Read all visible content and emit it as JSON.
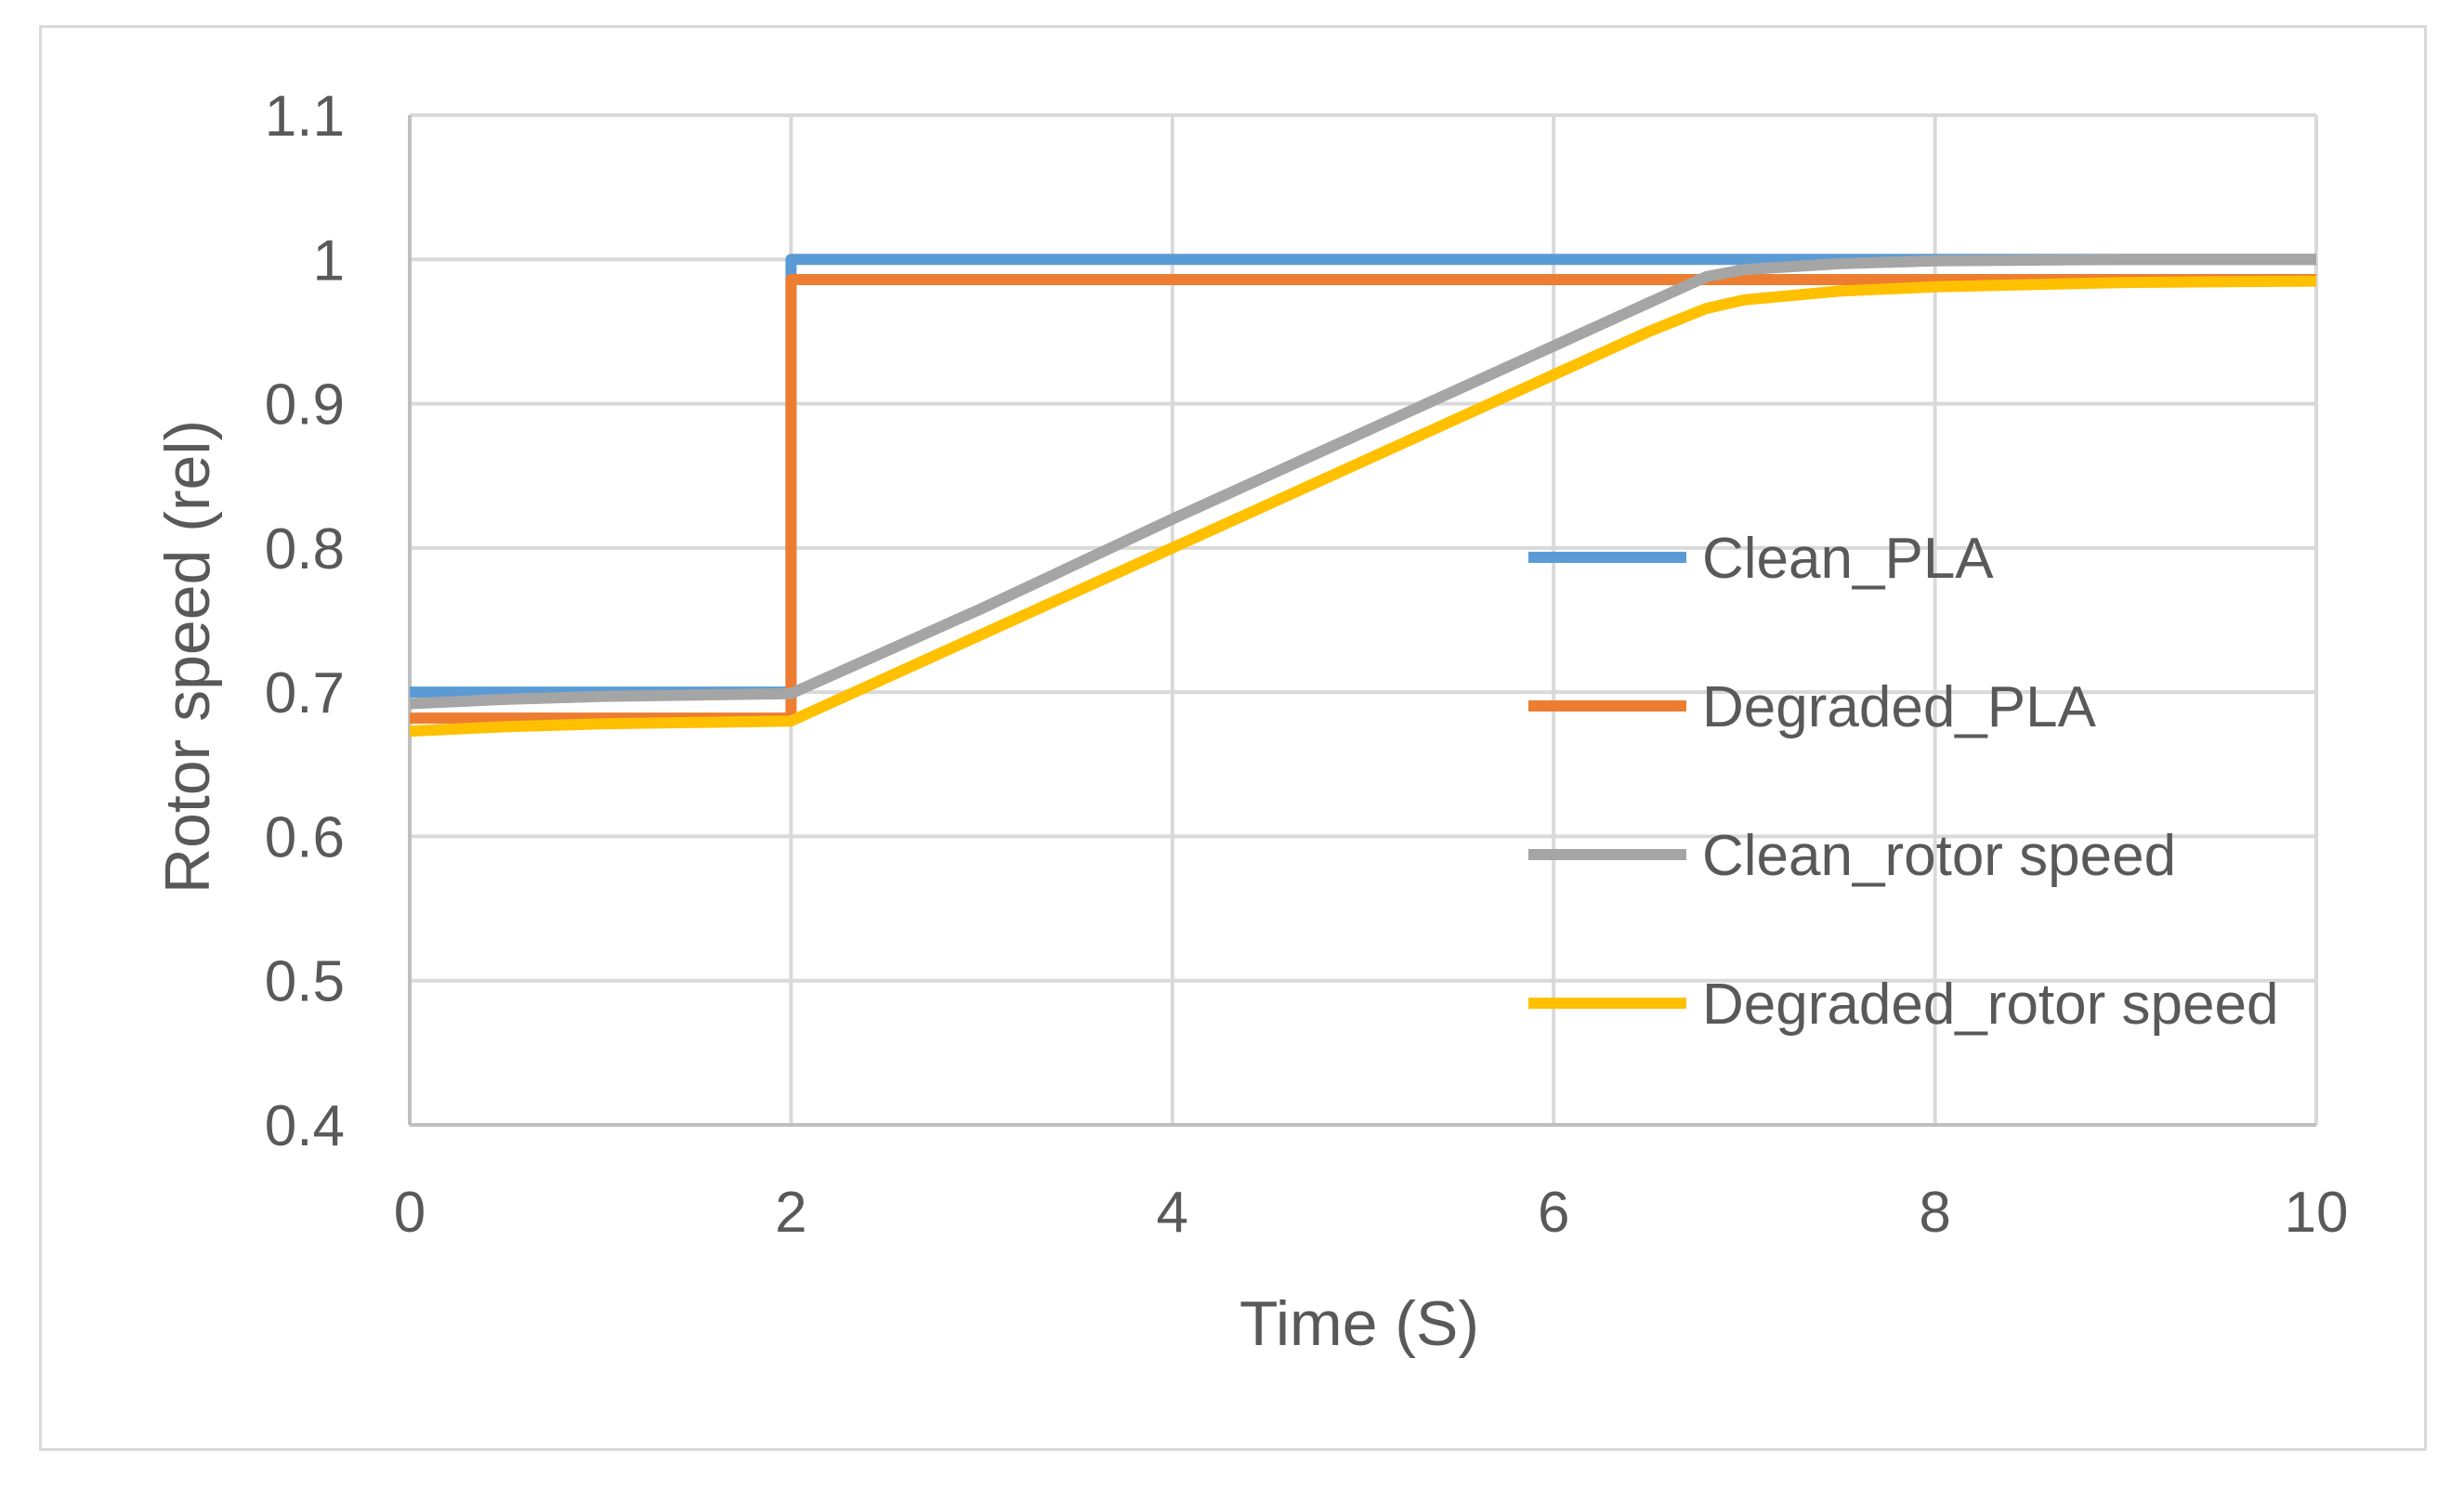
{
  "chart_data": {
    "type": "line",
    "title": "",
    "xlabel": "Time (S)",
    "ylabel": "Rotor speed (rel)",
    "xlim": [
      0,
      10
    ],
    "ylim": [
      0.4,
      1.1
    ],
    "x_ticks": [
      0,
      2,
      4,
      6,
      8,
      10
    ],
    "y_ticks": [
      0.4,
      0.5,
      0.6,
      0.7,
      0.8,
      0.9,
      1.0,
      1.1
    ],
    "x_tick_labels": [
      "0",
      "2",
      "4",
      "6",
      "8",
      "10"
    ],
    "y_tick_labels": [
      "0.4",
      "0.5",
      "0.6",
      "0.7",
      "0.8",
      "0.9",
      "1",
      "1.1"
    ],
    "grid": true,
    "legend_position": "right",
    "series": [
      {
        "name": "Clean_PLA",
        "color": "#5b9bd5",
        "x": [
          0,
          2.0,
          2.0,
          10
        ],
        "y": [
          0.7,
          0.7,
          1.0,
          1.0
        ]
      },
      {
        "name": "Degraded_PLA",
        "color": "#ed7d31",
        "x": [
          0,
          2.0,
          2.0,
          10
        ],
        "y": [
          0.682,
          0.682,
          0.986,
          0.986
        ]
      },
      {
        "name": "Clean_rotor speed",
        "color": "#a5a5a5",
        "x": [
          0,
          0.5,
          1.0,
          1.5,
          2.0,
          3.0,
          4.0,
          5.0,
          6.0,
          6.5,
          6.8,
          7.0,
          7.5,
          8.0,
          9.0,
          10.0
        ],
        "y": [
          0.692,
          0.695,
          0.697,
          0.698,
          0.699,
          0.758,
          0.82,
          0.88,
          0.94,
          0.97,
          0.988,
          0.993,
          0.997,
          0.999,
          1.0,
          1.0
        ]
      },
      {
        "name": "Degraded_rotor speed",
        "color": "#ffc000",
        "x": [
          0,
          0.5,
          1.0,
          1.5,
          2.0,
          3.0,
          4.0,
          5.0,
          6.0,
          6.5,
          6.8,
          7.0,
          7.5,
          8.0,
          9.0,
          10.0
        ],
        "y": [
          0.673,
          0.676,
          0.678,
          0.679,
          0.68,
          0.74,
          0.8,
          0.86,
          0.92,
          0.95,
          0.966,
          0.972,
          0.978,
          0.981,
          0.984,
          0.985
        ]
      }
    ]
  }
}
